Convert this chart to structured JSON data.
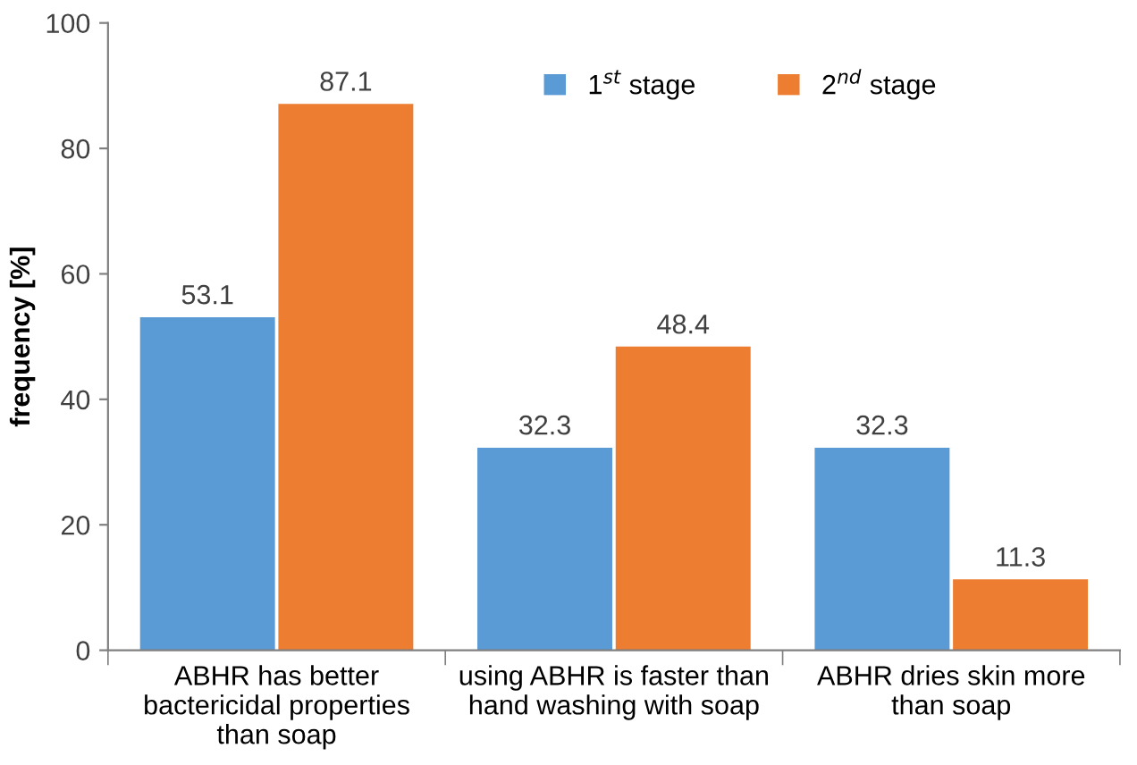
{
  "chart_data": {
    "type": "bar",
    "ylabel": "frequency [%]",
    "categories": [
      "ABHR has better\nbactericidal properties\nthan soap",
      "using ABHR is faster than\nhand washing with soap",
      "ABHR dries skin more\nthan soap"
    ],
    "series": [
      {
        "name": "1$^{st}$ stage",
        "color": "#5b9bd5",
        "values": [
          53.1,
          32.3,
          32.3
        ]
      },
      {
        "name": "2$^{nd}$ stage",
        "color": "#ed7d31",
        "values": [
          87.1,
          48.4,
          11.3
        ]
      }
    ],
    "ylim": [
      0,
      100
    ],
    "yticks": [
      0,
      20,
      40,
      60,
      80,
      100
    ],
    "grid": false,
    "legend": "top right",
    "data_labels": true
  }
}
